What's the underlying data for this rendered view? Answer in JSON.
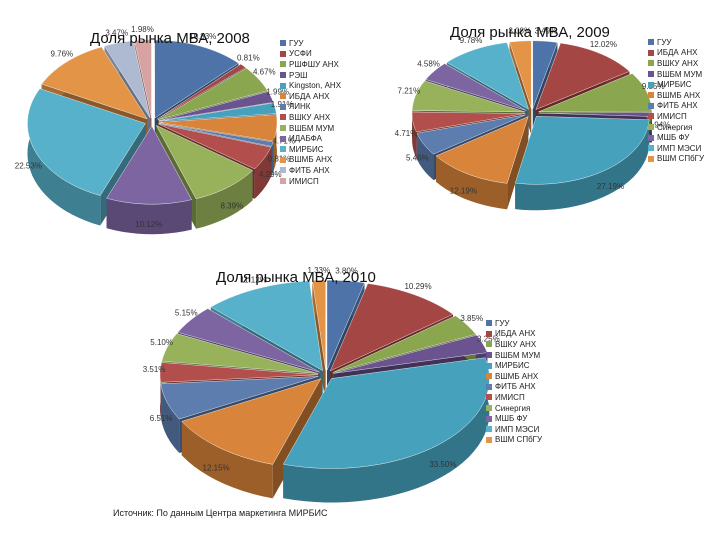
{
  "source": "Источник: По данным Центра маркетинга МИРБИС",
  "chart_data": [
    {
      "type": "pie",
      "style": "3d-exploded",
      "title": "Доля рынка МВА, 2008",
      "legend_position": "right",
      "labels": [
        "ГУУ",
        "УСФИ",
        "РШФШУ АНХ",
        "РЭШ",
        "Kingston, АНХ",
        "ИБДА АНХ",
        "ЛИНК",
        "ВШКУ АНХ",
        "ВШБМ МУМ",
        "ИДАБФА",
        "МИРБИС",
        "ВШМБ АНХ",
        "ФИТБ АНХ",
        "ИМИСП"
      ],
      "values": [
        10.83,
        0.81,
        4.67,
        1.99,
        1.91,
        4.71,
        0.81,
        4.29,
        8.39,
        10.12,
        22.53,
        9.76,
        3.47,
        1.98
      ],
      "value_labels": [
        "10.83%",
        "0.81%",
        "4.67%",
        "1.99%",
        "1.91%",
        "4.71%",
        "0.81%",
        "4.29%",
        "8.39%",
        "10.12%",
        "22.53%",
        "9.76%",
        "3.47%",
        "1.98%"
      ],
      "colors": [
        "#4e73a8",
        "#a44643",
        "#8aa64e",
        "#6b5390",
        "#46a1bd",
        "#d9843b",
        "#5c7dae",
        "#b24f4c",
        "#97b25a",
        "#7d65a1",
        "#57b1cb",
        "#e49447",
        "#aebad2",
        "#d6a3a2"
      ]
    },
    {
      "type": "pie",
      "style": "3d-exploded",
      "title": "Доля рынка МВА, 2009",
      "legend_position": "right",
      "labels": [
        "ГУУ",
        "ИБДА АНХ",
        "ВШКУ АНХ",
        "ВШБМ МУМ",
        "МИРБИС",
        "ВШМБ АНХ",
        "ФИТБ АНХ",
        "ИМИСП",
        "Синергия",
        "МШБ ФУ",
        "ИМП МЭСИ",
        "ВШМ СПбГУ"
      ],
      "values": [
        3.49,
        12.02,
        9.35,
        0.94,
        27.19,
        12.19,
        5.46,
        4.71,
        7.21,
        4.58,
        9.78,
        3.08
      ],
      "value_labels": [
        "3.49%",
        "12.02%",
        "9.35%",
        "0.94%",
        "27.19%",
        "12.19%",
        "5.46%",
        "4.71%",
        "7.21%",
        "4.58%",
        "9.78%",
        "3.08%"
      ],
      "colors": [
        "#4e73a8",
        "#a44643",
        "#8aa64e",
        "#6b5390",
        "#46a1bd",
        "#d9843b",
        "#5c7dae",
        "#b24f4c",
        "#97b25a",
        "#7d65a1",
        "#57b1cb",
        "#e49447"
      ]
    },
    {
      "type": "pie",
      "style": "3d-exploded",
      "title": "Доля рынка МВА, 2010",
      "legend_position": "right",
      "labels": [
        "ГУУ",
        "ИБДА АНХ",
        "ВШКУ АНХ",
        "ВШБМ МУМ",
        "МИРБИС",
        "ВШМБ АНХ",
        "ФИТБ АНХ",
        "ИМИСП",
        "Синергия",
        "МШБ ФУ",
        "ИМП МЭСИ",
        "ВШМ СПбГУ"
      ],
      "values": [
        3.8,
        10.29,
        3.85,
        3.25,
        33.5,
        12.15,
        6.51,
        3.51,
        5.1,
        5.15,
        11.12,
        1.33
      ],
      "value_labels": [
        "3.80%",
        "10.29%",
        "3.85%",
        "3.25%",
        "33.50%",
        "12.15%",
        "6.51%",
        "3.51%",
        "5.10%",
        "5.15%",
        "11.12%",
        "1.33%"
      ],
      "colors": [
        "#4e73a8",
        "#a44643",
        "#8aa64e",
        "#6b5390",
        "#46a1bd",
        "#d9843b",
        "#5c7dae",
        "#b24f4c",
        "#97b25a",
        "#7d65a1",
        "#57b1cb",
        "#e49447"
      ]
    }
  ]
}
